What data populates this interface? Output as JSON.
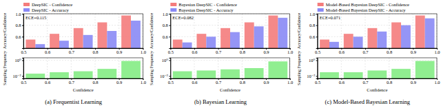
{
  "chart_data": [
    {
      "type": "bar",
      "annotations": [
        "ECE=0.115"
      ],
      "y_label": "Accuracy/Confidence",
      "x": [
        0.55,
        0.65,
        0.75,
        0.85,
        0.95
      ],
      "series": [
        {
          "name": "DeepSIC - Confidence",
          "color": "#f47c7c",
          "values": [
            0.55,
            0.65,
            0.75,
            0.85,
            0.97
          ]
        },
        {
          "name": "DeepSIC - Accuracy",
          "color": "#8a8af5",
          "values": [
            0.47,
            0.53,
            0.63,
            0.7,
            0.88
          ]
        }
      ],
      "xlim": [
        0.5,
        1.0
      ],
      "xticks": [
        0.5,
        0.6,
        0.7,
        0.8,
        0.9,
        {
          "value": 1.0,
          "label": "1.0"
        }
      ],
      "ylim": [
        0.4,
        1.0
      ],
      "yticks": [
        0.6,
        0.8,
        {
          "value": 1.0,
          "label": "1.0"
        }
      ],
      "grid": true,
      "legend": "top"
    },
    {
      "type": "bar",
      "title": "(a) Frequentist Learning",
      "x_label": "Confidence",
      "y_label": "Sampling Frequency",
      "x": [
        0.55,
        0.65,
        0.75,
        0.85,
        0.95
      ],
      "values": [
        0.02,
        0.03,
        0.04,
        0.08,
        0.8
      ],
      "color": "#90ee90",
      "xlim": [
        0.5,
        1.0
      ],
      "xticks": [
        0.5,
        0.6,
        0.7,
        0.8,
        0.9,
        {
          "value": 1.0,
          "label": "1.0"
        }
      ],
      "ylim": [
        0.005,
        2
      ],
      "yticks": [
        {
          "value": 0.01,
          "label": "10⁻²"
        },
        {
          "value": 1,
          "label": "10⁰"
        }
      ],
      "log": "y",
      "grid": true
    },
    {
      "type": "bar",
      "annotations": [
        "ECE=0.082"
      ],
      "y_label": "Accuracy/Confidence",
      "x": [
        0.55,
        0.65,
        0.75,
        0.85,
        0.95
      ],
      "series": [
        {
          "name": "Bayesian DeepSIC - Confidence",
          "color": "#f47c7c",
          "values": [
            0.55,
            0.65,
            0.75,
            0.85,
            0.97
          ]
        },
        {
          "name": "Bayesian DeepSIC - Accuracy",
          "color": "#8a8af5",
          "values": [
            0.5,
            0.6,
            0.68,
            0.78,
            0.93
          ]
        }
      ],
      "xlim": [
        0.5,
        1.0
      ],
      "xticks": [
        0.5,
        0.6,
        0.7,
        0.8,
        0.9,
        {
          "value": 1.0,
          "label": "1.0"
        }
      ],
      "ylim": [
        0.4,
        1.0
      ],
      "yticks": [
        0.6,
        0.8,
        {
          "value": 1.0,
          "label": "1.0"
        }
      ],
      "grid": true,
      "legend": "top"
    },
    {
      "type": "bar",
      "title": "(b) Bayesian Learning",
      "x_label": "Confidence",
      "y_label": "Sampling Frequency",
      "x": [
        0.55,
        0.65,
        0.75,
        0.85,
        0.95
      ],
      "values": [
        0.04,
        0.05,
        0.07,
        0.1,
        0.7
      ],
      "color": "#90ee90",
      "xlim": [
        0.5,
        1.0
      ],
      "xticks": [
        0.5,
        0.6,
        0.7,
        0.8,
        0.9,
        {
          "value": 1.0,
          "label": "1.0"
        }
      ],
      "ylim": [
        0.005,
        2
      ],
      "yticks": [
        {
          "value": 0.01,
          "label": "10⁻²"
        },
        {
          "value": 1,
          "label": "10⁰"
        }
      ],
      "log": "y",
      "grid": true
    },
    {
      "type": "bar",
      "annotations": [
        "ECE=0.071"
      ],
      "y_label": "Accuracy/Confidence",
      "x": [
        0.55,
        0.65,
        0.75,
        0.85,
        0.95
      ],
      "series": [
        {
          "name": "Model-Based Bayesian DeepSIC - Confidence",
          "color": "#f47c7c",
          "values": [
            0.55,
            0.65,
            0.75,
            0.85,
            0.97
          ]
        },
        {
          "name": "Model-Based Bayesian DeepSIC - Accuracy",
          "color": "#8a8af5",
          "values": [
            0.51,
            0.6,
            0.69,
            0.8,
            0.92
          ]
        }
      ],
      "xlim": [
        0.5,
        1.0
      ],
      "xticks": [
        0.5,
        0.6,
        0.7,
        0.8,
        0.9,
        {
          "value": 1.0,
          "label": "1.0"
        }
      ],
      "ylim": [
        0.4,
        1.0
      ],
      "yticks": [
        0.6,
        0.8,
        {
          "value": 1.0,
          "label": "1.0"
        }
      ],
      "grid": true,
      "legend": "top"
    },
    {
      "type": "bar",
      "title": "(c) Model-Based Bayesian Learning",
      "x_label": "Confidence",
      "y_label": "Sampling Frequency",
      "x": [
        0.55,
        0.65,
        0.75,
        0.85,
        0.95
      ],
      "values": [
        0.03,
        0.03,
        0.05,
        0.08,
        0.8
      ],
      "color": "#90ee90",
      "xlim": [
        0.5,
        1.0
      ],
      "xticks": [
        0.5,
        0.6,
        0.7,
        0.8,
        0.9,
        {
          "value": 1.0,
          "label": "1.0"
        }
      ],
      "ylim": [
        0.005,
        2
      ],
      "yticks": [
        {
          "value": 0.01,
          "label": "10⁻²"
        },
        {
          "value": 1,
          "label": "10⁰"
        }
      ],
      "log": "y",
      "grid": true
    }
  ]
}
